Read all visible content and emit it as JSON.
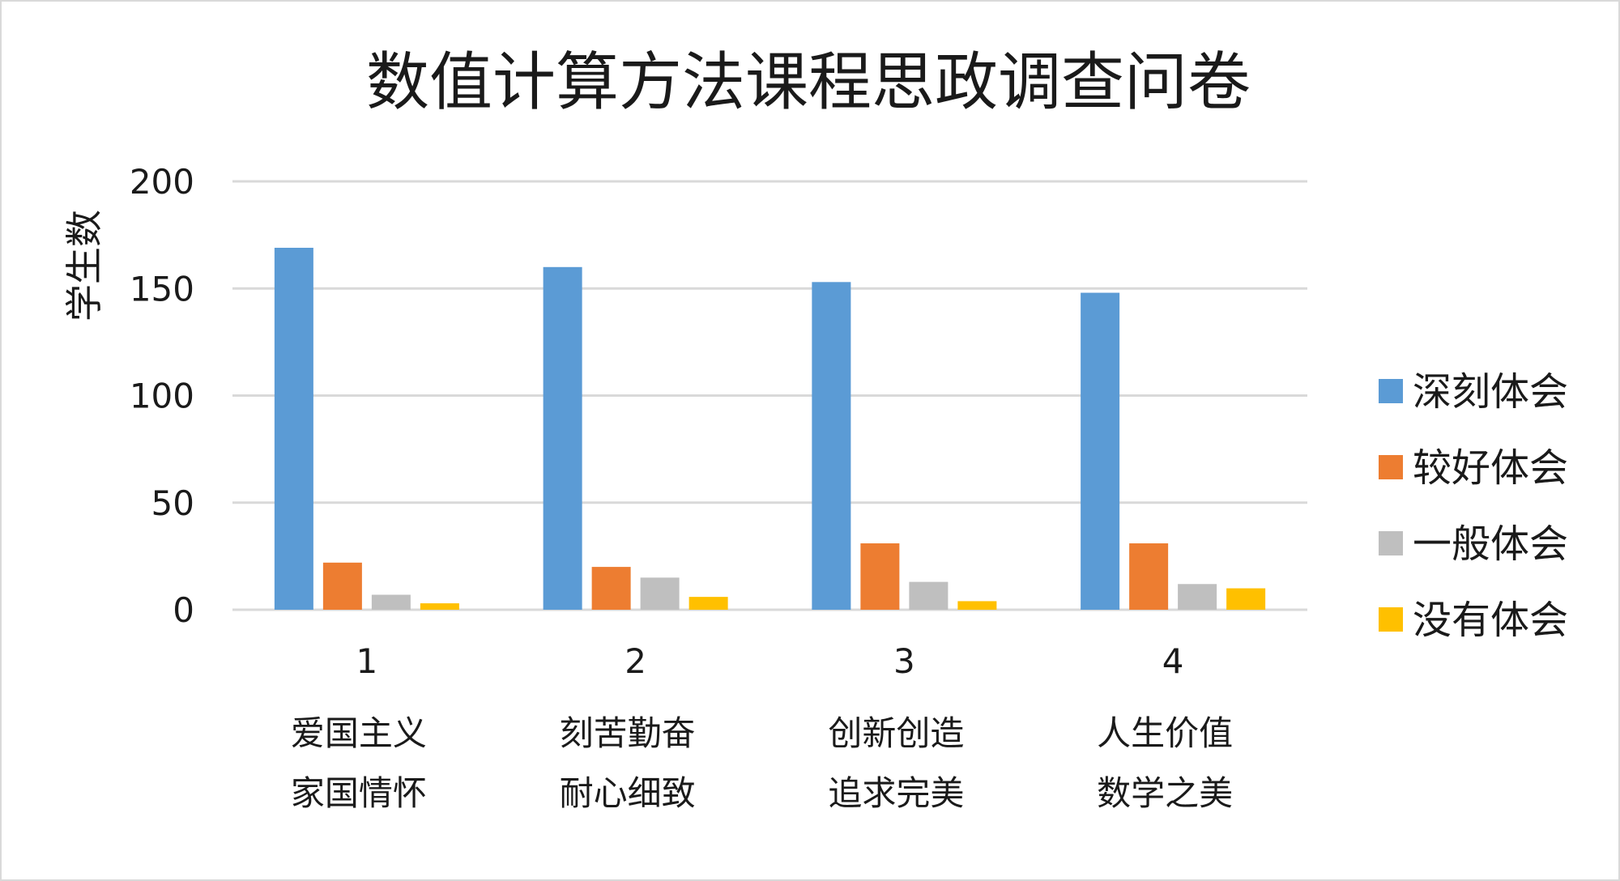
{
  "chart_data": {
    "type": "bar",
    "title": "数值计算方法课程思政调查问卷",
    "ylabel": "学生数",
    "xlabel": "",
    "ylim": [
      0,
      200
    ],
    "yticks": [
      0,
      50,
      100,
      150,
      200
    ],
    "grid": true,
    "legend_position": "right",
    "categories": [
      "1",
      "2",
      "3",
      "4"
    ],
    "category_sublabels": [
      [
        "爱国主义",
        "家国情怀"
      ],
      [
        "刻苦勤奋",
        "耐心细致"
      ],
      [
        "创新创造",
        "追求完美"
      ],
      [
        "人生价值",
        "数学之美"
      ]
    ],
    "series": [
      {
        "name": "深刻体会",
        "color": "#5b9bd5",
        "values": [
          169,
          160,
          153,
          148
        ]
      },
      {
        "name": "较好体会",
        "color": "#ed7d31",
        "values": [
          22,
          20,
          31,
          31
        ]
      },
      {
        "name": "一般体会",
        "color": "#bfbfbf",
        "values": [
          7,
          15,
          13,
          12
        ]
      },
      {
        "name": "没有体会",
        "color": "#ffc000",
        "values": [
          3,
          6,
          4,
          10
        ]
      }
    ]
  }
}
